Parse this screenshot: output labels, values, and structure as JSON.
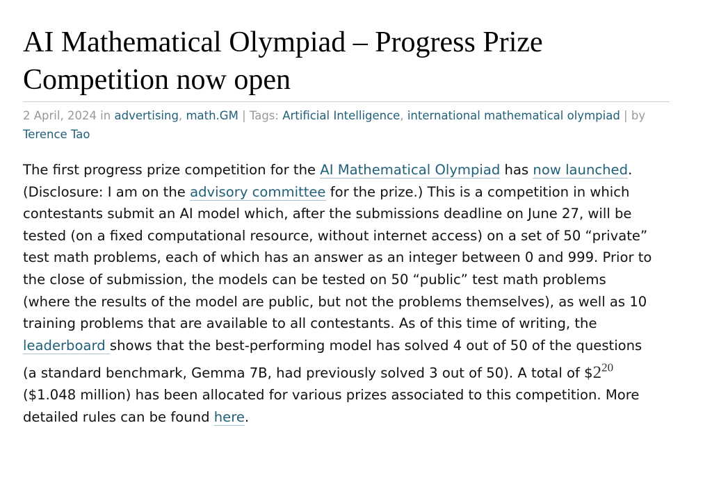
{
  "post": {
    "title": "AI Mathematical Olympiad – Progress Prize Competition now open",
    "meta": {
      "date": "2 April, 2024",
      "in": " in ",
      "categories": [
        "advertising",
        "math.GM"
      ],
      "tags_label": " | Tags: ",
      "tags": [
        "Artificial Intelligence",
        "international mathematical olympiad"
      ],
      "by": " | by ",
      "author": "Terence Tao"
    },
    "body": {
      "t1": "The first progress prize competition for the ",
      "l1": "AI Mathematical Olympiad",
      "t2": " has ",
      "l2": "now launched",
      "t3": ". (Disclosure: I am on the ",
      "l3": "advisory committee",
      "t4": " for the prize.) This is a competition in which contestants submit an AI model which, after the submissions deadline on June 27, will be tested (on a fixed computational resource, without internet access) on a set of 50 “private” test math problems, each of which has an answer as an integer between 0 and 999. Prior to the close of submission, the models can be tested on 50 “public” test math problems (where the results of the model are public, but not the problems themselves), as well as 10 training problems that are available to all contestants. As of this time of writing, the ",
      "l4": "leaderboard ",
      "t5": "shows that the best-performing model has solved 4 out of 50 of the questions (a standard benchmark, Gemma 7B, had previously solved 3 out of 50). A total of $",
      "math_base": "2",
      "math_exp": "20",
      "t6": " ($1.048 million) has been allocated for various prizes associated to this competition. More detailed rules can be found ",
      "l5": "here",
      "t7": "."
    }
  }
}
